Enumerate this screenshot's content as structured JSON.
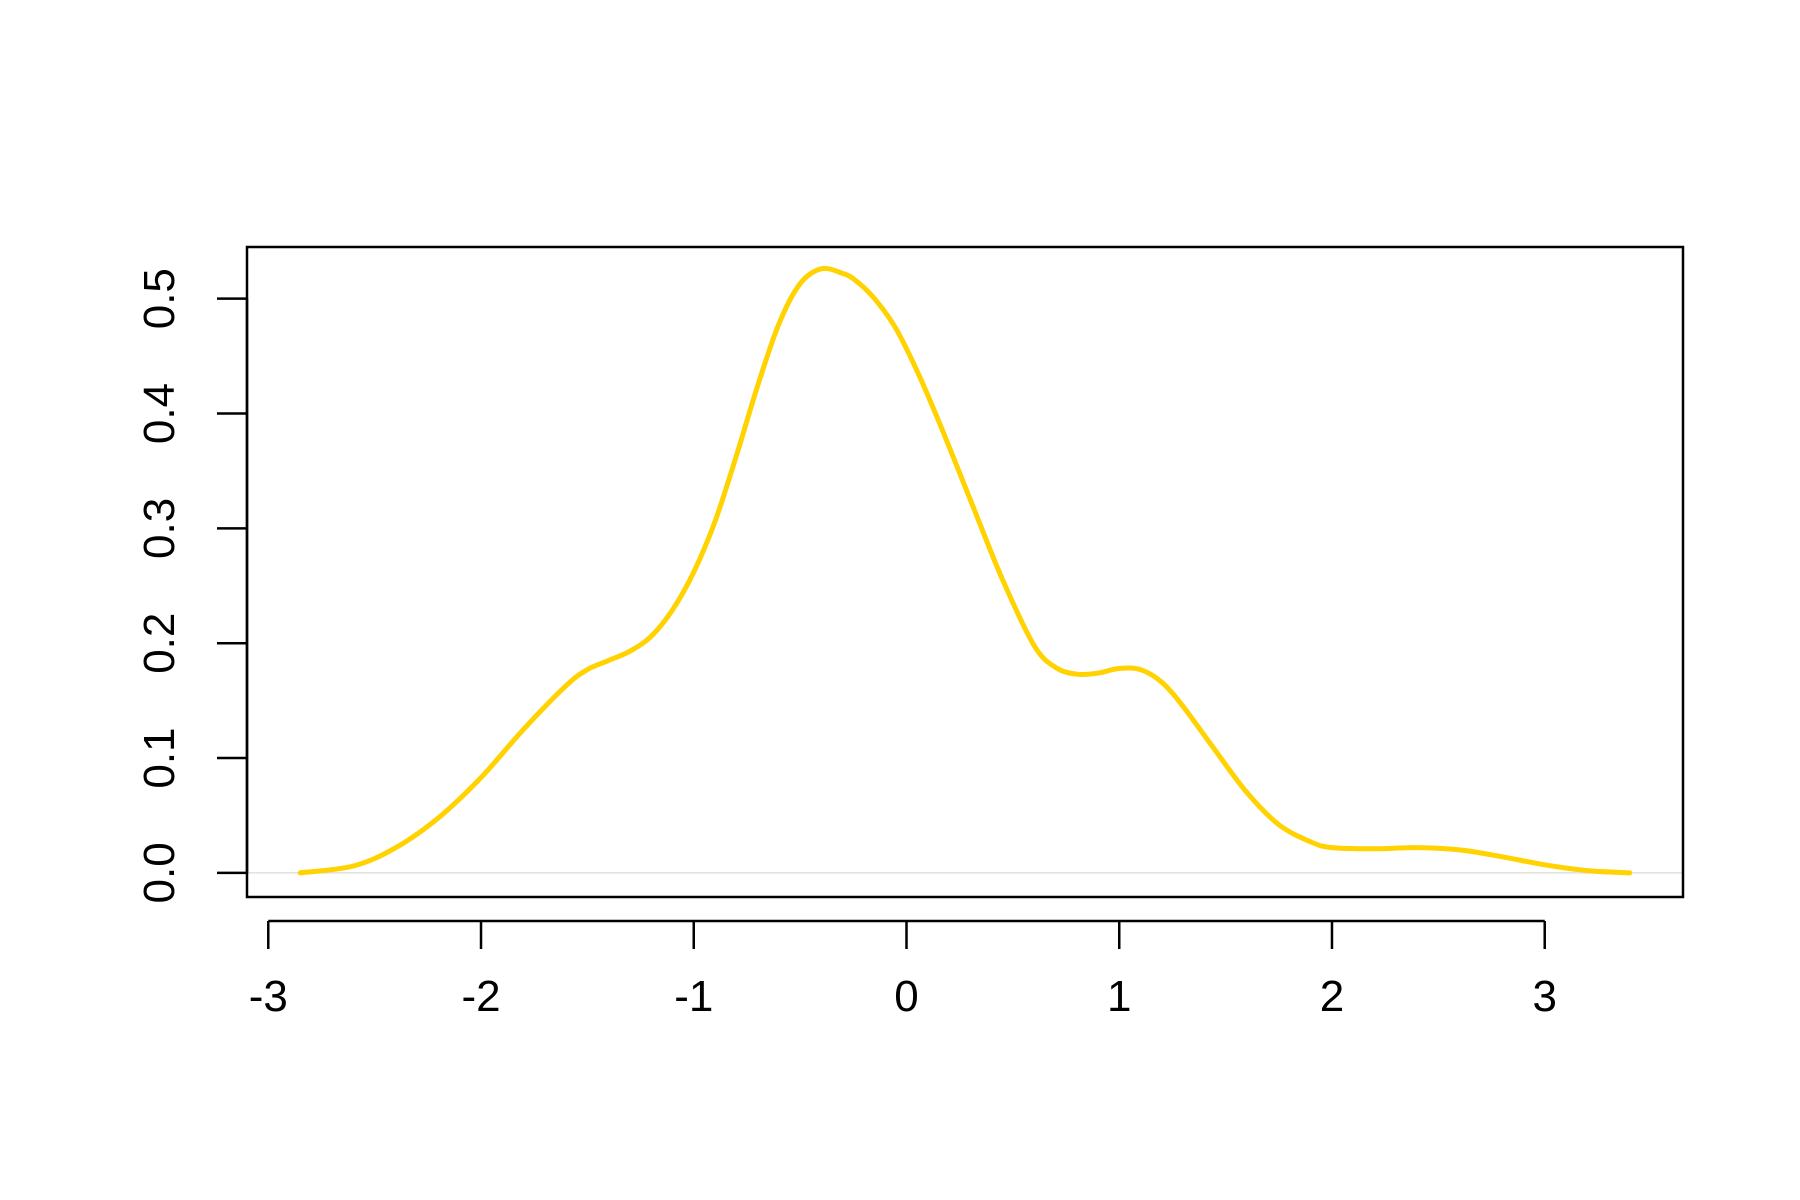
{
  "chart_data": {
    "type": "line",
    "title": "",
    "xlabel": "",
    "ylabel": "",
    "xlim": [
      -3.1,
      3.65
    ],
    "ylim": [
      -0.021,
      0.545
    ],
    "x_ticks": [
      -3,
      -2,
      -1,
      0,
      1,
      2,
      3
    ],
    "x_tick_labels": [
      "-3",
      "-2",
      "-1",
      "0",
      "1",
      "2",
      "3"
    ],
    "y_ticks": [
      0.0,
      0.1,
      0.2,
      0.3,
      0.4,
      0.5
    ],
    "y_tick_labels": [
      "0.0",
      "0.1",
      "0.2",
      "0.3",
      "0.4",
      "0.5"
    ],
    "grid": false,
    "baseline": 0,
    "series": [
      {
        "color": "#FFD200",
        "x": [
          -2.85,
          -2.6,
          -2.4,
          -2.2,
          -2.0,
          -1.8,
          -1.6,
          -1.5,
          -1.4,
          -1.3,
          -1.2,
          -1.1,
          -1.0,
          -0.9,
          -0.8,
          -0.7,
          -0.6,
          -0.5,
          -0.4,
          -0.3,
          -0.24,
          -0.15,
          -0.05,
          0.05,
          0.15,
          0.3,
          0.45,
          0.6,
          0.7,
          0.8,
          0.9,
          1.0,
          1.1,
          1.2,
          1.3,
          1.45,
          1.6,
          1.75,
          1.9,
          2.0,
          2.2,
          2.4,
          2.6,
          2.8,
          3.0,
          3.2,
          3.4
        ],
        "y": [
          0.0,
          0.006,
          0.022,
          0.048,
          0.083,
          0.125,
          0.163,
          0.177,
          0.185,
          0.193,
          0.206,
          0.229,
          0.262,
          0.306,
          0.363,
          0.424,
          0.478,
          0.513,
          0.526,
          0.522,
          0.516,
          0.5,
          0.474,
          0.437,
          0.394,
          0.325,
          0.256,
          0.198,
          0.179,
          0.173,
          0.174,
          0.178,
          0.177,
          0.166,
          0.145,
          0.107,
          0.07,
          0.042,
          0.027,
          0.022,
          0.021,
          0.022,
          0.02,
          0.014,
          0.007,
          0.002,
          0.0
        ]
      }
    ]
  }
}
